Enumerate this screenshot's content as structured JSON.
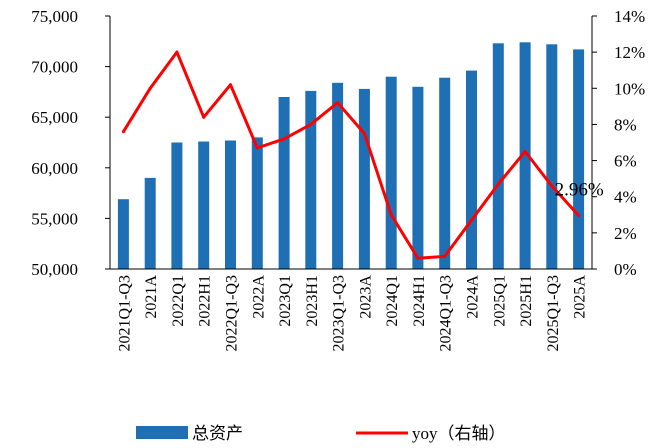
{
  "chart_data": {
    "type": "bar+line",
    "title": "",
    "categories": [
      "2021Q1-Q3",
      "2021A",
      "2022Q1",
      "2022H1",
      "2022Q1-Q3",
      "2022A",
      "2023Q1",
      "2023H1",
      "2023Q1-Q3",
      "2023A",
      "2024Q1",
      "2024H1",
      "2024Q1-Q3",
      "2024A",
      "2025Q1",
      "2025H1",
      "2025Q1-Q3",
      "2025A"
    ],
    "series": [
      {
        "name": "总资产",
        "type": "bar",
        "axis": "left",
        "color": "#1f6fb5",
        "values": [
          56900,
          59000,
          62500,
          62600,
          62700,
          63000,
          67000,
          67600,
          68400,
          67800,
          69000,
          68000,
          68900,
          69600,
          72300,
          72400,
          72200,
          71700
        ]
      },
      {
        "name": "yoy（右轴）",
        "type": "line",
        "axis": "right",
        "color": "#ff0000",
        "values": [
          7.6,
          10.0,
          12.0,
          8.4,
          10.2,
          6.7,
          7.2,
          8.0,
          9.2,
          7.5,
          3.0,
          0.6,
          0.7,
          2.7,
          4.7,
          6.5,
          4.6,
          2.96
        ]
      }
    ],
    "left_axis": {
      "ylim": [
        50000,
        75000
      ],
      "ticks": [
        "50,000",
        "55,000",
        "60,000",
        "65,000",
        "70,000",
        "75,000"
      ]
    },
    "right_axis": {
      "ylim": [
        0,
        14
      ],
      "ticks": [
        "0%",
        "2%",
        "4%",
        "6%",
        "8%",
        "10%",
        "12%",
        "14%"
      ]
    },
    "annotation": "2.96%",
    "grid": false,
    "legend_position": "bottom"
  }
}
